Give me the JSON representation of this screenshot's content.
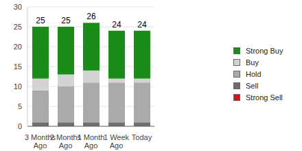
{
  "chart_data": {
    "type": "bar",
    "categories": [
      "3 Months Ago",
      "2 Months Ago",
      "1 Month Ago",
      "1 Week Ago",
      "Today"
    ],
    "series": [
      {
        "name": "Strong Sell",
        "color": "#d4141c",
        "values": [
          0,
          0,
          0,
          0,
          0
        ]
      },
      {
        "name": "Sell",
        "color": "#6e6e6e",
        "values": [
          1,
          1,
          1,
          1,
          1
        ]
      },
      {
        "name": "Hold",
        "color": "#aaaaaa",
        "values": [
          8,
          9,
          10,
          10,
          10
        ]
      },
      {
        "name": "Buy",
        "color": "#d3d3d3",
        "values": [
          3,
          3,
          3,
          1,
          1
        ]
      },
      {
        "name": "Strong Buy",
        "color": "#1a8c1a",
        "values": [
          13,
          12,
          12,
          12,
          12
        ]
      }
    ],
    "totals": [
      25,
      25,
      26,
      24,
      24
    ],
    "ylim": [
      0,
      30
    ],
    "yticks": [
      0,
      5,
      10,
      15,
      20,
      25,
      30
    ],
    "grid": true,
    "stacked": true,
    "legend": "right"
  }
}
